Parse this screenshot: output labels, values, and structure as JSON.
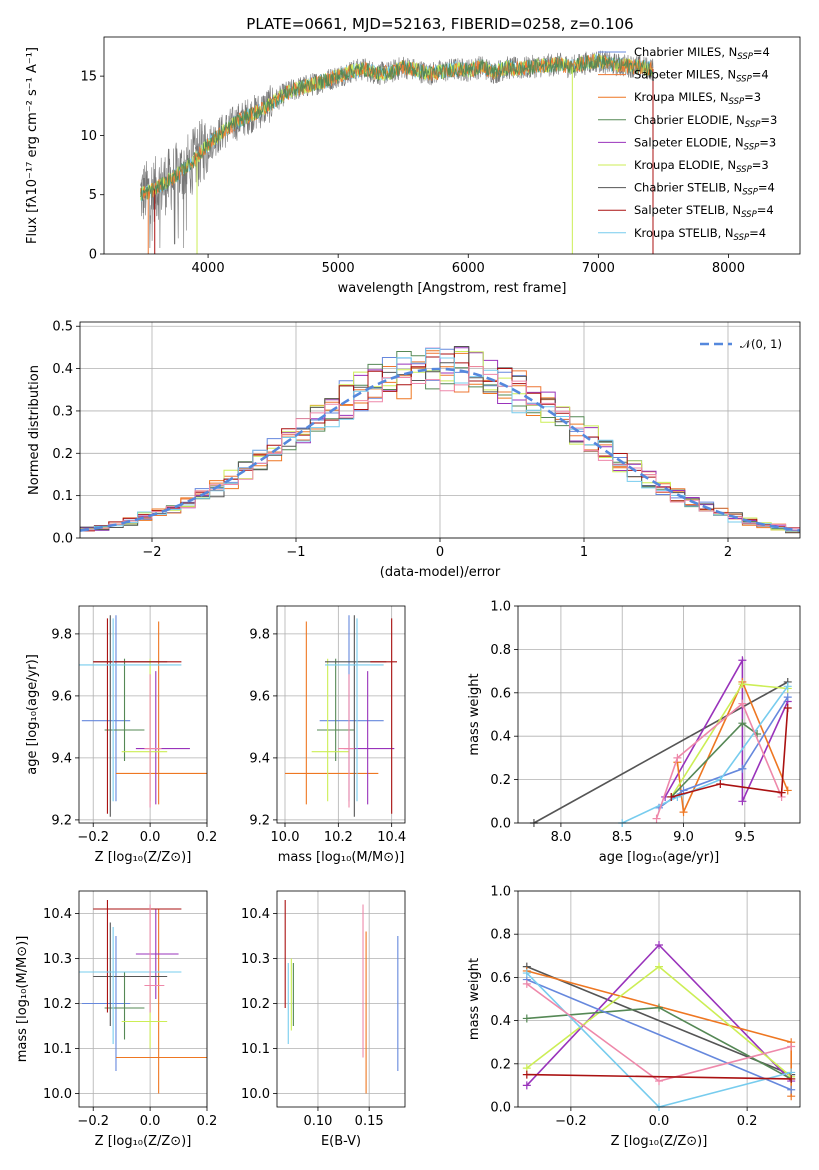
{
  "title": "PLATE=0661, MJD=52163, FIBERID=0258, z=0.106",
  "colors": {
    "Chabrier MILES": "#6688dd",
    "Salpeter MILES": "#ee7733",
    "Kroupa MILES": "#ee7722",
    "Chabrier ELODIE": "#558855",
    "Salpeter ELODIE": "#9933bb",
    "Kroupa ELODIE": "#ccee55",
    "Chabrier STELIB": "#555555",
    "Salpeter STELIB": "#aa1111",
    "Kroupa STELIB": "#77ccee",
    "pink": "#ee88aa",
    "gaussian": "#5588dd",
    "data": "#777777"
  },
  "chart_data": [
    {
      "type": "line",
      "title": "PLATE=0661, MJD=52163, FIBERID=0258, z=0.106",
      "xlabel": "wavelength [Angstrom, rest frame]",
      "ylabel": "Flux [fλ10⁻¹⁷ erg cm⁻² s⁻¹ A⁻¹]",
      "xlim": [
        3200,
        8550
      ],
      "ylim": [
        0,
        18.3
      ],
      "xticks": [
        "4000",
        "5000",
        "6000",
        "7000",
        "8000"
      ],
      "yticks": [
        "0",
        "5",
        "10",
        "15"
      ],
      "legend": [
        "Chabrier MILES, Nₛₛₚ=4",
        "Salpeter MILES, Nₛₛₚ=4",
        "Kroupa MILES, Nₛₛₚ=3",
        "Chabrier ELODIE, Nₛₛₚ=3",
        "Salpeter ELODIE, Nₛₛₚ=3",
        "Kroupa ELODIE, Nₛₛₚ=3",
        "Chabrier STELIB, Nₛₛₚ=4",
        "Salpeter STELIB, Nₛₛₚ=4",
        "Kroupa STELIB, Nₛₛₚ=4"
      ],
      "legend_labels": [
        {
          "name": "Chabrier MILES",
          "n": "4"
        },
        {
          "name": "Salpeter MILES",
          "n": "4"
        },
        {
          "name": "Kroupa MILES",
          "n": "3"
        },
        {
          "name": "Chabrier ELODIE",
          "n": "3"
        },
        {
          "name": "Salpeter ELODIE",
          "n": "3"
        },
        {
          "name": "Kroupa ELODIE",
          "n": "3"
        },
        {
          "name": "Chabrier STELIB",
          "n": "4"
        },
        {
          "name": "Salpeter STELIB",
          "n": "4"
        },
        {
          "name": "Kroupa STELIB",
          "n": "4"
        }
      ],
      "legend_position": "right",
      "spectrum_anchors": {
        "wavelength": [
          3480,
          3600,
          3700,
          3800,
          3900,
          4000,
          4100,
          4200,
          4300,
          4400,
          4500,
          4600,
          4700,
          4800,
          4900,
          5000,
          5100,
          5200,
          5300,
          5400,
          5500,
          5600,
          5700,
          5800,
          5900,
          6000,
          6100,
          6200,
          6300,
          6400,
          6500,
          6600,
          6700,
          6800,
          6900,
          7000,
          7100,
          7200,
          7300,
          7420
        ],
        "flux": [
          5.0,
          5.5,
          6.2,
          7.0,
          8.0,
          9.3,
          10.2,
          11.0,
          11.6,
          12.1,
          12.8,
          13.6,
          14.0,
          14.3,
          14.6,
          15.0,
          15.4,
          15.6,
          15.2,
          15.3,
          15.8,
          15.5,
          15.2,
          15.4,
          15.6,
          15.5,
          15.8,
          15.3,
          15.7,
          15.6,
          15.8,
          15.9,
          16.0,
          15.8,
          16.1,
          16.3,
          16.0,
          15.9,
          15.8,
          15.6
        ]
      },
      "data_extent": [
        3480,
        7420
      ]
    },
    {
      "type": "bar",
      "xlabel": "(data-model)/error",
      "ylabel": "Normed distribution",
      "xlim": [
        -2.5,
        2.5
      ],
      "ylim": [
        0,
        0.51
      ],
      "xticks": [
        "−2",
        "−1",
        "0",
        "1",
        "2"
      ],
      "yticks": [
        "0.0",
        "0.1",
        "0.2",
        "0.3",
        "0.4",
        "0.5"
      ],
      "grid": true,
      "legend": "𝒩(0, 1)",
      "legend_position": "top-right",
      "bin_width": 0.1,
      "note_series": "9 step histograms, one per model"
    },
    {
      "type": "scatter",
      "xlabel": "Z [log₁₀(Z/Z⊙)]",
      "ylabel": "age [log₁₀(age/yr)]",
      "xlim": [
        -0.25,
        0.2
      ],
      "ylim": [
        9.19,
        9.89
      ],
      "xticks": [
        "−0.2",
        "0.0",
        "0.2"
      ],
      "yticks": [
        "9.2",
        "9.4",
        "9.6",
        "9.8"
      ],
      "grid": true
    },
    {
      "type": "scatter",
      "xlabel": "mass [log₁₀(M/M⊙)]",
      "xlim": [
        9.97,
        10.45
      ],
      "ylim": [
        9.19,
        9.89
      ],
      "xticks": [
        "10.0",
        "10.2",
        "10.4"
      ],
      "yticks": [
        "9.2",
        "9.4",
        "9.6",
        "9.8"
      ],
      "grid": true
    },
    {
      "type": "line",
      "xlabel": "age  [log₁₀(age/yr)]",
      "ylabel": "mass weight",
      "xlim": [
        7.65,
        9.95
      ],
      "ylim": [
        0,
        1.0
      ],
      "xticks": [
        "8.0",
        "8.5",
        "9.0",
        "9.5"
      ],
      "yticks": [
        "0.0",
        "0.2",
        "0.4",
        "0.6",
        "0.8",
        "1.0"
      ],
      "grid": true
    },
    {
      "type": "scatter",
      "xlabel": "Z [log₁₀(Z/Z⊙)]",
      "ylabel": "mass [log₁₀(M/M⊙)]",
      "xlim": [
        -0.25,
        0.2
      ],
      "ylim": [
        9.97,
        10.45
      ],
      "xticks": [
        "−0.2",
        "0.0",
        "0.2"
      ],
      "yticks": [
        "10.0",
        "10.1",
        "10.2",
        "10.3",
        "10.4"
      ],
      "grid": true
    },
    {
      "type": "scatter",
      "xlabel": "E(B-V)",
      "xlim": [
        0.06,
        0.185
      ],
      "ylim": [
        9.97,
        10.45
      ],
      "xticks": [
        "0.10",
        "0.15"
      ],
      "yticks": [
        "10.0",
        "10.1",
        "10.2",
        "10.3",
        "10.4"
      ],
      "grid": true
    },
    {
      "type": "line",
      "xlabel": "Z [log₁₀(Z/Z⊙)]",
      "ylabel": "mass weight",
      "xlim": [
        -0.32,
        0.32
      ],
      "ylim": [
        0,
        1.0
      ],
      "xticks": [
        "−0.2",
        "0.0",
        "0.2"
      ],
      "yticks": [
        "0.0",
        "0.2",
        "0.4",
        "0.6",
        "0.8",
        "1.0"
      ],
      "grid": true
    }
  ],
  "models": {
    "age_vs_Z": [
      {
        "c": "#6688dd",
        "x": -0.12,
        "xerr": [
          0.12,
          0.05
        ],
        "y": 9.52,
        "yerr": [
          0.26,
          0.34
        ]
      },
      {
        "c": "#ee7722",
        "x": 0.03,
        "xerr": [
          0.15,
          0.17
        ],
        "y": 9.35,
        "yerr": [
          0.1,
          0.49
        ]
      },
      {
        "c": "#558855",
        "x": -0.09,
        "xerr": [
          0.07,
          0.07
        ],
        "y": 9.49,
        "yerr": [
          0.1,
          0.23
        ]
      },
      {
        "c": "#9933bb",
        "x": 0.02,
        "xerr": [
          0.07,
          0.12
        ],
        "y": 9.43,
        "yerr": [
          0.18,
          0.25
        ]
      },
      {
        "c": "#ccee55",
        "x": 0.0,
        "xerr": [
          0.1,
          0.06
        ],
        "y": 9.42,
        "yerr": [
          0.16,
          0.3
        ]
      },
      {
        "c": "#555555",
        "x": -0.14,
        "xerr": [
          0.06,
          0.2
        ],
        "y": 9.71,
        "yerr": [
          0.5,
          0.15
        ]
      },
      {
        "c": "#aa1111",
        "x": -0.15,
        "xerr": [
          0.05,
          0.26
        ],
        "y": 9.71,
        "yerr": [
          0.49,
          0.14
        ]
      },
      {
        "c": "#77ccee",
        "x": -0.13,
        "xerr": [
          0.12,
          0.24
        ],
        "y": 9.7,
        "yerr": [
          0.44,
          0.15
        ]
      },
      {
        "c": "#ee88aa",
        "x": 0.0,
        "xerr": [
          0.02,
          0.04
        ],
        "y": 9.43,
        "yerr": [
          0.19,
          0.24
        ]
      }
    ],
    "age_vs_mass": [
      {
        "c": "#6688dd",
        "x": 10.24,
        "xerr": [
          0.11,
          0.13
        ],
        "y": 9.52,
        "yerr": [
          0.26,
          0.34
        ]
      },
      {
        "c": "#ee7722",
        "x": 10.08,
        "xerr": [
          0.08,
          0.27
        ],
        "y": 9.35,
        "yerr": [
          0.1,
          0.49
        ]
      },
      {
        "c": "#558855",
        "x": 10.19,
        "xerr": [
          0.07,
          0.07
        ],
        "y": 9.49,
        "yerr": [
          0.1,
          0.23
        ]
      },
      {
        "c": "#9933bb",
        "x": 10.31,
        "xerr": [
          0.09,
          0.1
        ],
        "y": 9.43,
        "yerr": [
          0.18,
          0.25
        ]
      },
      {
        "c": "#ccee55",
        "x": 10.16,
        "xerr": [
          0.06,
          0.08
        ],
        "y": 9.42,
        "yerr": [
          0.16,
          0.3
        ]
      },
      {
        "c": "#555555",
        "x": 10.26,
        "xerr": [
          0.11,
          0.12
        ],
        "y": 9.71,
        "yerr": [
          0.5,
          0.15
        ]
      },
      {
        "c": "#aa1111",
        "x": 10.4,
        "xerr": [
          0.08,
          0.02
        ],
        "y": 9.71,
        "yerr": [
          0.49,
          0.14
        ]
      },
      {
        "c": "#77ccee",
        "x": 10.27,
        "xerr": [
          0.12,
          0.1
        ],
        "y": 9.7,
        "yerr": [
          0.44,
          0.15
        ]
      },
      {
        "c": "#ee88aa",
        "x": 10.24,
        "xerr": [
          0.04,
          0.02
        ],
        "y": 9.43,
        "yerr": [
          0.19,
          0.24
        ]
      }
    ],
    "mass_vs_Z": [
      {
        "c": "#6688dd",
        "x": -0.12,
        "xerr": [
          0.12,
          0.05
        ],
        "y": 10.2,
        "yerr": [
          0.15,
          0.15
        ]
      },
      {
        "c": "#ee7722",
        "x": 0.03,
        "xerr": [
          0.15,
          0.17
        ],
        "y": 10.08,
        "yerr": [
          0.08,
          0.33
        ]
      },
      {
        "c": "#558855",
        "x": -0.09,
        "xerr": [
          0.07,
          0.07
        ],
        "y": 10.19,
        "yerr": [
          0.07,
          0.08
        ]
      },
      {
        "c": "#9933bb",
        "x": 0.02,
        "xerr": [
          0.07,
          0.08
        ],
        "y": 10.31,
        "yerr": [
          0.1,
          0.1
        ]
      },
      {
        "c": "#ccee55",
        "x": 0.0,
        "xerr": [
          0.1,
          0.06
        ],
        "y": 10.16,
        "yerr": [
          0.06,
          0.08
        ]
      },
      {
        "c": "#555555",
        "x": -0.14,
        "xerr": [
          0.06,
          0.2
        ],
        "y": 10.26,
        "yerr": [
          0.11,
          0.12
        ]
      },
      {
        "c": "#aa1111",
        "x": -0.15,
        "xerr": [
          0.05,
          0.26
        ],
        "y": 10.41,
        "yerr": [
          0.23,
          0.02
        ]
      },
      {
        "c": "#77ccee",
        "x": -0.13,
        "xerr": [
          0.12,
          0.24
        ],
        "y": 10.27,
        "yerr": [
          0.16,
          0.1
        ]
      },
      {
        "c": "#ee88aa",
        "x": 0.0,
        "xerr": [
          0.02,
          0.05
        ],
        "y": 10.24,
        "yerr": [
          0.06,
          0.18
        ]
      }
    ],
    "mass_vs_ebv": [
      {
        "c": "#aa1111",
        "x": 0.068,
        "y": 10.31,
        "yerr": [
          0.12,
          0.12
        ]
      },
      {
        "c": "#77ccee",
        "x": 0.071,
        "y": 10.2,
        "yerr": [
          0.09,
          0.09
        ]
      },
      {
        "c": "#ccee55",
        "x": 0.074,
        "y": 10.22,
        "yerr": [
          0.08,
          0.08
        ]
      },
      {
        "c": "#558855",
        "x": 0.076,
        "y": 10.22,
        "yerr": [
          0.07,
          0.07
        ]
      },
      {
        "c": "#ee88aa",
        "x": 0.144,
        "y": 10.25,
        "yerr": [
          0.17,
          0.17
        ]
      },
      {
        "c": "#ee7722",
        "x": 0.147,
        "y": 10.18,
        "yerr": [
          0.18,
          0.18
        ]
      },
      {
        "c": "#6688dd",
        "x": 0.178,
        "y": 10.2,
        "yerr": [
          0.15,
          0.15
        ]
      }
    ],
    "weight_vs_age": [
      {
        "c": "#555555",
        "pts": [
          [
            7.78,
            0.0
          ],
          [
            9.85,
            0.65
          ]
        ]
      },
      {
        "c": "#9933bb",
        "pts": [
          [
            8.85,
            0.12
          ],
          [
            9.48,
            0.75
          ],
          [
            9.48,
            0.1
          ],
          [
            9.85,
            0.56
          ]
        ]
      },
      {
        "c": "#ee7722",
        "pts": [
          [
            8.95,
            0.28
          ],
          [
            9.0,
            0.05
          ],
          [
            9.48,
            0.65
          ],
          [
            9.85,
            0.15
          ]
        ]
      },
      {
        "c": "#ccee55",
        "pts": [
          [
            8.9,
            0.12
          ],
          [
            9.48,
            0.64
          ],
          [
            9.85,
            0.62
          ]
        ]
      },
      {
        "c": "#558855",
        "pts": [
          [
            8.9,
            0.12
          ],
          [
            9.48,
            0.46
          ],
          [
            9.6,
            0.41
          ]
        ]
      },
      {
        "c": "#6688dd",
        "pts": [
          [
            8.8,
            0.07
          ],
          [
            9.0,
            0.15
          ],
          [
            9.48,
            0.25
          ],
          [
            9.85,
            0.58
          ]
        ]
      },
      {
        "c": "#77ccee",
        "pts": [
          [
            8.5,
            0.0
          ],
          [
            8.95,
            0.12
          ],
          [
            9.3,
            0.2
          ],
          [
            9.85,
            0.63
          ]
        ]
      },
      {
        "c": "#ee88aa",
        "pts": [
          [
            8.78,
            0.02
          ],
          [
            8.95,
            0.3
          ],
          [
            9.48,
            0.55
          ],
          [
            9.8,
            0.12
          ]
        ]
      },
      {
        "c": "#aa1111",
        "pts": [
          [
            8.9,
            0.12
          ],
          [
            9.3,
            0.18
          ],
          [
            9.8,
            0.14
          ],
          [
            9.85,
            0.53
          ]
        ]
      }
    ],
    "weight_vs_Z": [
      {
        "c": "#555555",
        "pts": [
          [
            -0.3,
            0.65
          ],
          [
            0.3,
            0.15
          ]
        ]
      },
      {
        "c": "#9933bb",
        "pts": [
          [
            -0.3,
            0.1
          ],
          [
            0.0,
            0.75
          ],
          [
            0.3,
            0.12
          ]
        ]
      },
      {
        "c": "#ee7722",
        "pts": [
          [
            -0.3,
            0.63
          ],
          [
            0.3,
            0.3
          ],
          [
            0.3,
            0.05
          ]
        ]
      },
      {
        "c": "#ccee55",
        "pts": [
          [
            -0.3,
            0.18
          ],
          [
            0.0,
            0.65
          ],
          [
            0.3,
            0.14
          ]
        ]
      },
      {
        "c": "#558855",
        "pts": [
          [
            -0.3,
            0.41
          ],
          [
            0.0,
            0.46
          ],
          [
            0.3,
            0.13
          ]
        ]
      },
      {
        "c": "#6688dd",
        "pts": [
          [
            -0.3,
            0.59
          ],
          [
            0.3,
            0.08
          ]
        ]
      },
      {
        "c": "#77ccee",
        "pts": [
          [
            -0.3,
            0.62
          ],
          [
            0.0,
            0.0
          ],
          [
            0.3,
            0.16
          ]
        ]
      },
      {
        "c": "#ee88aa",
        "pts": [
          [
            -0.3,
            0.57
          ],
          [
            0.0,
            0.12
          ],
          [
            0.3,
            0.28
          ]
        ]
      },
      {
        "c": "#aa1111",
        "pts": [
          [
            -0.3,
            0.15
          ],
          [
            0.3,
            0.13
          ]
        ]
      }
    ]
  }
}
